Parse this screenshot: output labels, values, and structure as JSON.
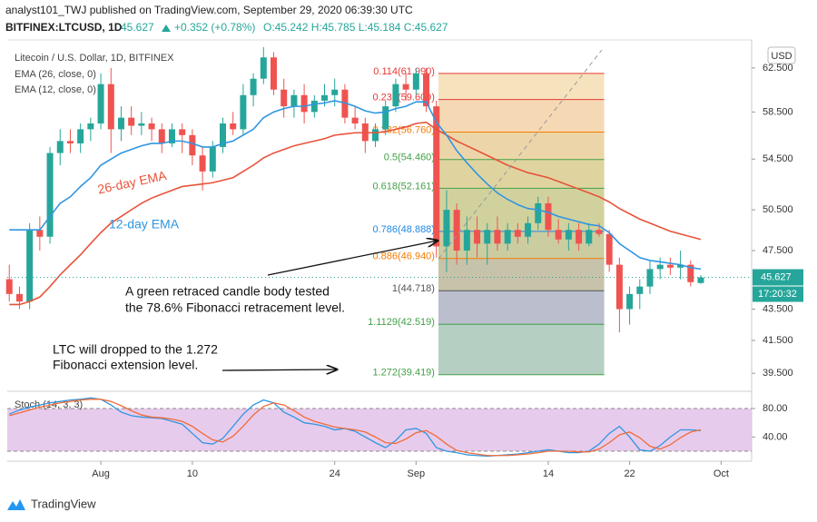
{
  "header": {
    "publisher": "analyst101_TWJ published on TradingView.com, September 29, 2020 06:39:30 UTC",
    "symbol": "BITFINEX:LTCUSD, 1D",
    "price": "45.627",
    "change": "+0.352 (+0.78%)",
    "ohlc": "O:45.242 H:45.785 L:45.184 C:45.627",
    "currency": "USD",
    "countdown": "17:20:32",
    "brand": "TradingView"
  },
  "chart_data": {
    "type": "candlestick",
    "title": "Litecoin / U.S. Dollar, 1D, BITFINEX",
    "log_scale": true,
    "up_color": "#26a69a",
    "down_color": "#ef5350",
    "xlim": [
      -0.2,
      73
    ],
    "ylim": [
      38.5,
      65.1
    ],
    "xticks": [
      {
        "value": 9,
        "label": "Aug"
      },
      {
        "value": 18,
        "label": "10"
      },
      {
        "value": 32,
        "label": "24"
      },
      {
        "value": 40,
        "label": "Sep"
      },
      {
        "value": 53,
        "label": "14"
      },
      {
        "value": 61,
        "label": "22"
      },
      {
        "value": 70,
        "label": "Oct"
      }
    ],
    "yticks": [
      {
        "value": 62.5,
        "label": "62.500"
      },
      {
        "value": 58.5,
        "label": "58.500"
      },
      {
        "value": 54.5,
        "label": "54.500"
      },
      {
        "value": 50.5,
        "label": "50.500"
      },
      {
        "value": 47.5,
        "label": "47.500"
      },
      {
        "value": 43.5,
        "label": "43.500"
      },
      {
        "value": 41.5,
        "label": "41.500"
      },
      {
        "value": 39.5,
        "label": "39.500"
      }
    ],
    "ohlc": {
      "open": [
        45.5,
        44.5,
        44,
        49,
        48.5,
        55,
        56,
        55.8,
        57,
        57.5,
        61,
        57,
        58,
        57.3,
        57.5,
        57,
        55.8,
        57,
        56.5,
        54.8,
        53.5,
        55.5,
        57.5,
        57,
        60,
        61.5,
        63.5,
        60.5,
        59,
        60,
        58.5,
        59.5,
        60,
        60.5,
        58,
        57.5,
        56,
        57,
        59,
        61,
        60.5,
        62,
        59,
        47.8,
        50.5,
        47.5,
        49,
        48,
        49,
        48,
        49,
        48.5,
        49.5,
        51,
        49,
        48.3,
        49,
        48,
        49,
        48.7,
        46.5,
        43.5,
        44.5,
        45,
        46.2,
        46.5,
        46.3,
        46.5,
        45.242
      ],
      "high": [
        46.5,
        45,
        49.5,
        50,
        55.5,
        57,
        57,
        57.5,
        58,
        62,
        62.5,
        59,
        59,
        58.5,
        58,
        57.5,
        57.5,
        57.5,
        57,
        55.5,
        56,
        58,
        58.5,
        61,
        62,
        64.5,
        64,
        61.5,
        60.5,
        61,
        60,
        61,
        61.5,
        61,
        59,
        58,
        57.5,
        59.5,
        61.5,
        62,
        62.5,
        62.5,
        59.5,
        52,
        51,
        50,
        50,
        49.5,
        50,
        49.5,
        49.5,
        50,
        51.5,
        51.5,
        49.8,
        49.5,
        49.5,
        49.5,
        49.5,
        49,
        47,
        45,
        45.5,
        46.8,
        47,
        47,
        47.5,
        46.8,
        45.785
      ],
      "low": [
        44,
        43.5,
        43.5,
        47.5,
        48,
        54,
        55,
        55,
        56,
        57,
        55,
        56,
        56.5,
        56.5,
        56,
        55,
        55.5,
        55,
        54,
        52,
        53,
        55,
        56.5,
        56.5,
        59,
        61,
        60,
        58,
        58,
        57.5,
        58,
        59,
        59,
        57.5,
        57,
        55,
        55.5,
        56.5,
        58.5,
        59.5,
        60,
        58.5,
        47,
        46,
        46.5,
        46.5,
        47,
        46.5,
        47.5,
        47.5,
        48,
        48,
        49,
        48.5,
        48,
        47.5,
        47.5,
        47.8,
        48.5,
        46,
        42,
        42.5,
        43.5,
        44.5,
        45.5,
        45.8,
        45.5,
        45,
        45.184
      ],
      "close": [
        44.5,
        44,
        49,
        48.5,
        55,
        56,
        55.8,
        57,
        57.5,
        61,
        57,
        58,
        57.3,
        57.5,
        57,
        55.8,
        57,
        56.5,
        54.8,
        53.5,
        55.5,
        57.5,
        57,
        60,
        61.5,
        63.5,
        60.5,
        59,
        60,
        58.5,
        59.5,
        60,
        60.5,
        58,
        57.5,
        56,
        57,
        59,
        61,
        60.5,
        62,
        59,
        47.8,
        50.5,
        47.5,
        49,
        48,
        49,
        48,
        49,
        48.5,
        49.5,
        51,
        49,
        48.3,
        49,
        48,
        49,
        48.7,
        46.5,
        43.5,
        44.5,
        45,
        46.2,
        46.5,
        46.3,
        46.5,
        45.3,
        45.627
      ]
    },
    "series": [
      {
        "name": "EMA (26, close, 0)",
        "label": "26-day EMA",
        "color": "#e8533a",
        "values": [
          43.8,
          43.8,
          44,
          44.3,
          45,
          45.8,
          46.5,
          47.2,
          48,
          48.8,
          49.5,
          50,
          50.5,
          51,
          51.4,
          51.7,
          52,
          52.3,
          52.4,
          52.5,
          52.6,
          52.8,
          53,
          53.5,
          54,
          54.6,
          55,
          55.3,
          55.6,
          55.8,
          56,
          56.2,
          56.5,
          56.6,
          56.7,
          56.7,
          56.7,
          56.8,
          57,
          57.2,
          57.5,
          57.6,
          57,
          56.5,
          56,
          55.6,
          55.2,
          54.8,
          54.4,
          54,
          53.7,
          53.4,
          53.2,
          53,
          52.7,
          52.4,
          52.1,
          51.8,
          51.5,
          51.1,
          50.6,
          50.2,
          49.8,
          49.5,
          49.2,
          48.9,
          48.7,
          48.5,
          48.3
        ]
      },
      {
        "name": "EMA (12, close, 0)",
        "label": "12-day EMA",
        "color": "#2f96e0",
        "values": [
          49,
          49,
          49,
          49,
          50,
          51,
          51.5,
          52.3,
          53,
          54,
          54.5,
          55,
          55.3,
          55.6,
          55.8,
          55.8,
          56,
          56,
          55.8,
          55.5,
          55.5,
          55.8,
          56,
          56.5,
          57,
          58,
          58.5,
          58.8,
          59,
          59,
          59.2,
          59.3,
          59.5,
          59.3,
          59,
          58.6,
          58.4,
          58.5,
          58.8,
          59,
          59.4,
          59.4,
          57.6,
          56.5,
          55.2,
          54.2,
          53.3,
          52.5,
          51.8,
          51.3,
          50.9,
          50.6,
          50.5,
          50.3,
          50,
          49.8,
          49.6,
          49.4,
          49.3,
          48.8,
          48,
          47.5,
          47,
          46.8,
          46.7,
          46.6,
          46.5,
          46.3,
          46.2
        ]
      }
    ],
    "fib_levels": [
      {
        "value": 61.99,
        "label": "0.114(61.990)",
        "color": "#e53935"
      },
      {
        "value": 59.609,
        "label": "0.236(59.609)",
        "color": "#e53935"
      },
      {
        "value": 56.76,
        "label": "0.382(56.760)",
        "color": "#f57c00"
      },
      {
        "value": 54.46,
        "label": "0.5(54.460)",
        "color": "#43a047"
      },
      {
        "value": 52.161,
        "label": "0.618(52.161)",
        "color": "#43a047"
      },
      {
        "value": 48.888,
        "label": "0.786(48.888)",
        "color": "#1e88e5"
      },
      {
        "value": 46.94,
        "label": "0.886(46.940)",
        "color": "#f57c00"
      },
      {
        "value": 44.718,
        "label": "1(44.718)",
        "color": "#555555"
      },
      {
        "value": 42.519,
        "label": "1.1129(42.519)",
        "color": "#43a047"
      },
      {
        "value": 39.419,
        "label": "1.272(39.419)",
        "color": "#43a047"
      }
    ],
    "annotations": [
      "A green retraced candle body tested",
      "the 78.6% Fibonacci retracement level.",
      "LTC will dropped to the 1.272",
      "Fibonacci extension level."
    ],
    "stoch": {
      "title": "Stoch (14, 3, 3)",
      "ylim": [
        6,
        103
      ],
      "yticks": [
        {
          "value": 80,
          "label": "80.00"
        },
        {
          "value": 40,
          "label": "40.00"
        }
      ],
      "band": [
        20,
        80
      ],
      "band_color": "#e1bee7",
      "series": [
        {
          "color": "#2f96e0",
          "values": [
            72,
            78,
            82,
            85,
            88,
            90,
            92,
            93,
            95,
            93,
            85,
            75,
            70,
            68,
            67,
            66,
            62,
            58,
            45,
            32,
            30,
            38,
            55,
            72,
            85,
            92,
            88,
            75,
            68,
            60,
            58,
            55,
            50,
            52,
            48,
            40,
            32,
            25,
            35,
            50,
            52,
            45,
            25,
            20,
            18,
            15,
            14,
            13,
            14,
            15,
            16,
            18,
            20,
            22,
            20,
            18,
            18,
            20,
            30,
            45,
            55,
            40,
            22,
            20,
            28,
            40,
            50,
            50,
            49
          ]
        },
        {
          "color": "#ef6c3a",
          "values": [
            70,
            74,
            78,
            82,
            85,
            88,
            90,
            92,
            93,
            93,
            90,
            84,
            77,
            71,
            68,
            67,
            65,
            62,
            55,
            45,
            36,
            33,
            41,
            55,
            71,
            83,
            88,
            85,
            77,
            68,
            62,
            58,
            54,
            52,
            50,
            47,
            40,
            32,
            31,
            37,
            46,
            49,
            41,
            30,
            21,
            18,
            16,
            14,
            14,
            14,
            15,
            16,
            18,
            20,
            20,
            20,
            19,
            19,
            23,
            32,
            43,
            47,
            39,
            27,
            23,
            29,
            39,
            47,
            50
          ]
        }
      ]
    }
  }
}
